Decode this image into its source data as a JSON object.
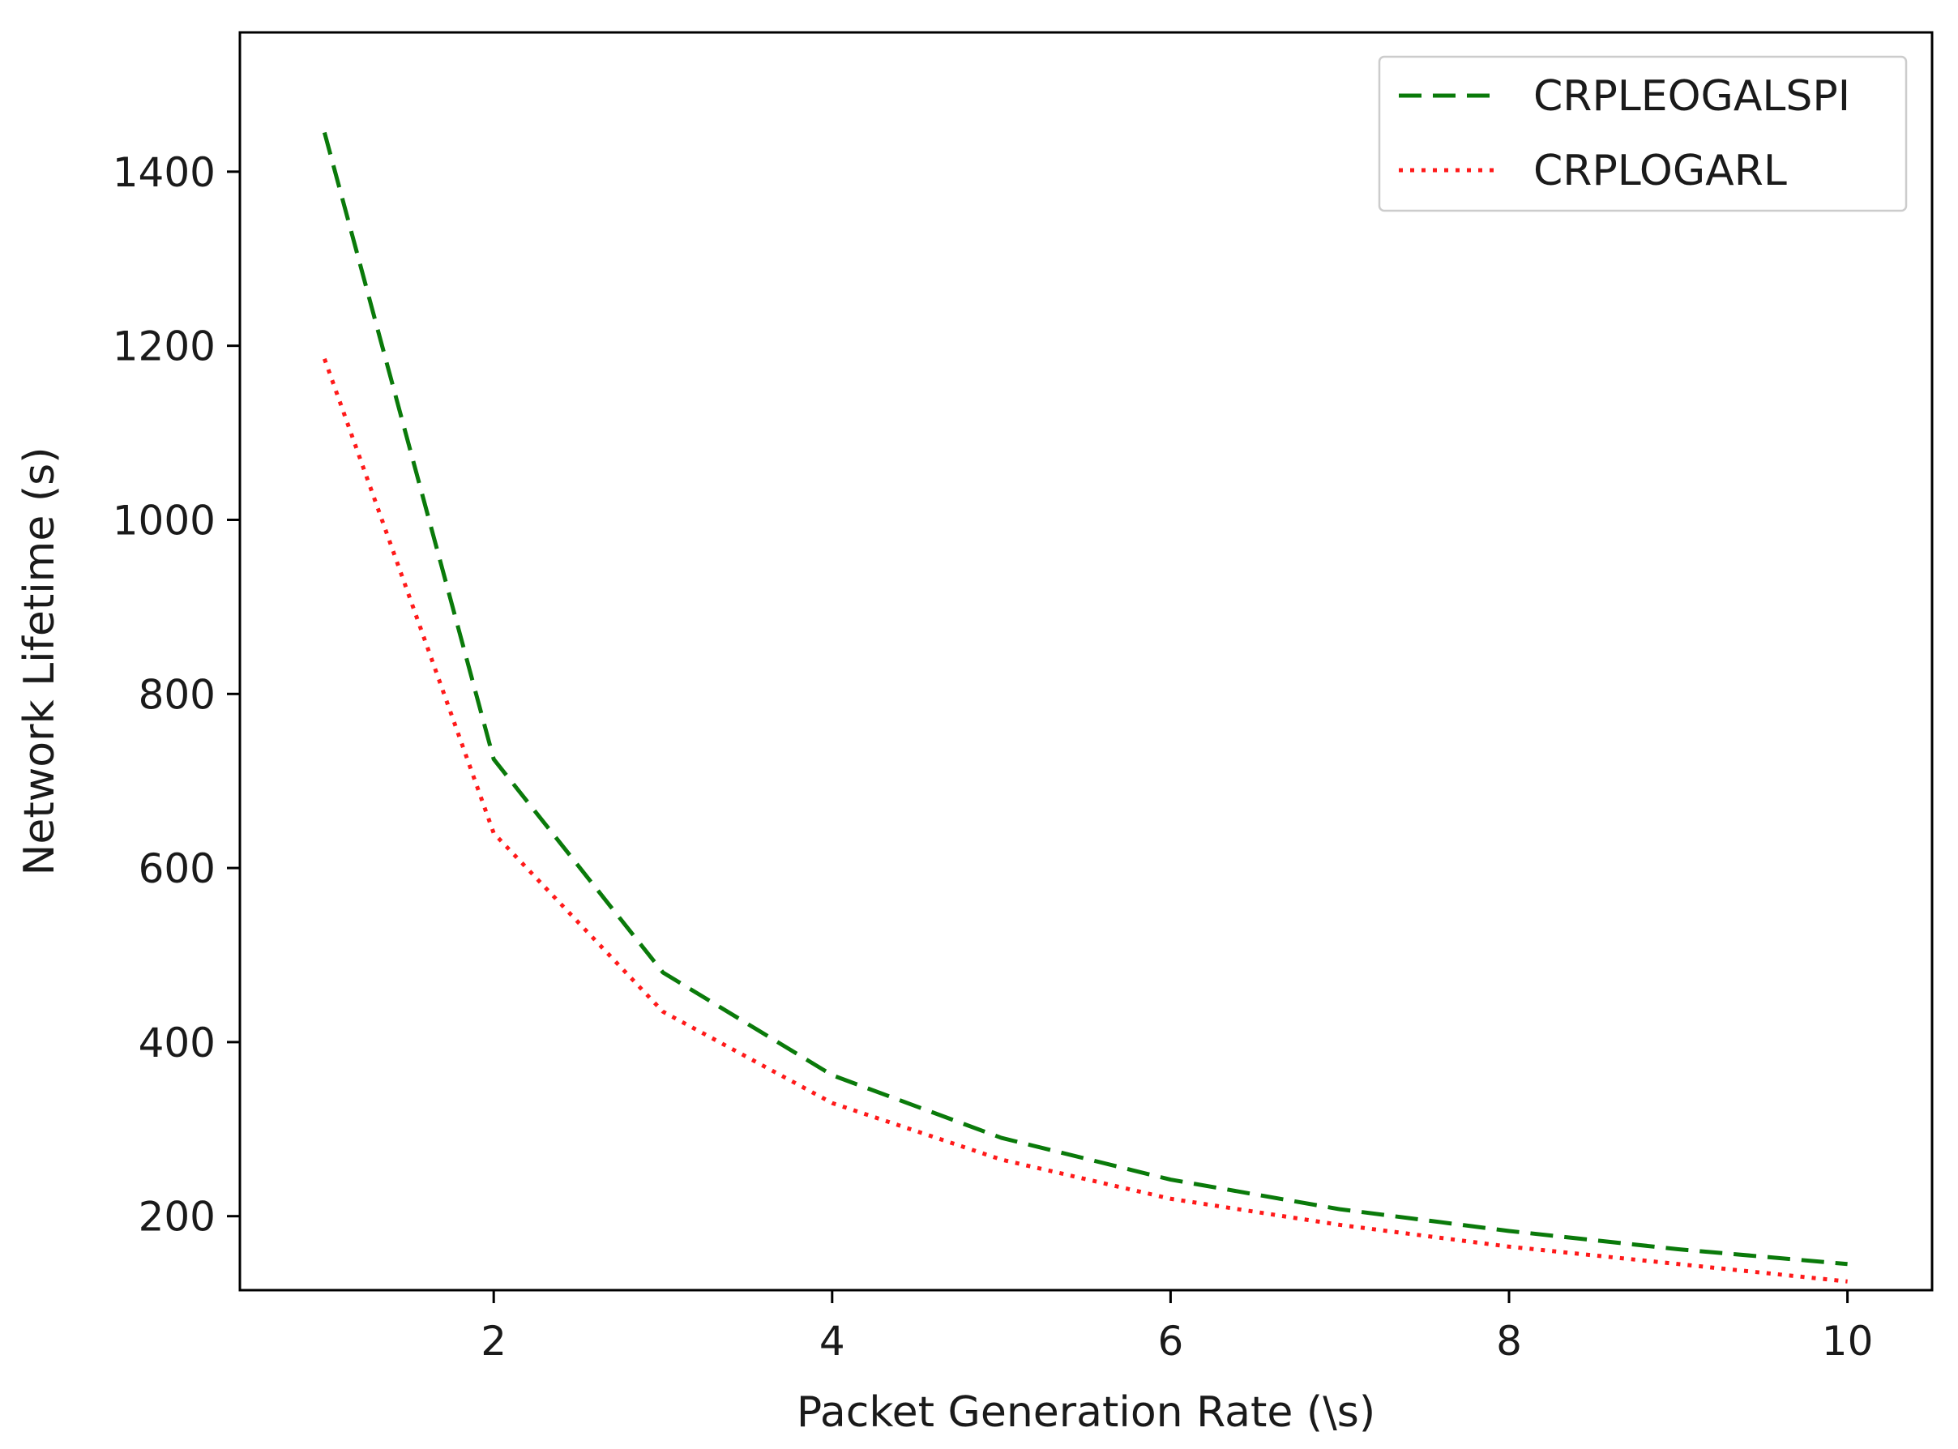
{
  "chart_data": {
    "type": "line",
    "title": "",
    "xlabel": "Packet Generation Rate (\\s)",
    "ylabel": "Network Lifetime (s)",
    "x": [
      1,
      2,
      3,
      4,
      5,
      6,
      7,
      8,
      9,
      10
    ],
    "xlim": [
      0.5,
      10.5
    ],
    "ylim": [
      115,
      1560
    ],
    "xticks": [
      2,
      4,
      6,
      8,
      10
    ],
    "yticks": [
      200,
      400,
      600,
      800,
      1000,
      1200,
      1400
    ],
    "grid": false,
    "legend_position": "top-right",
    "series": [
      {
        "name": "CRPLEOGALSPI",
        "style": "dashed",
        "color": "#0a7a0a",
        "values": [
          1445,
          725,
          480,
          362,
          290,
          242,
          208,
          183,
          162,
          145
        ]
      },
      {
        "name": "CRPLOGARL",
        "style": "dotted",
        "color": "#ff1a1a",
        "values": [
          1185,
          640,
          435,
          330,
          265,
          220,
          190,
          165,
          145,
          125
        ]
      }
    ]
  }
}
